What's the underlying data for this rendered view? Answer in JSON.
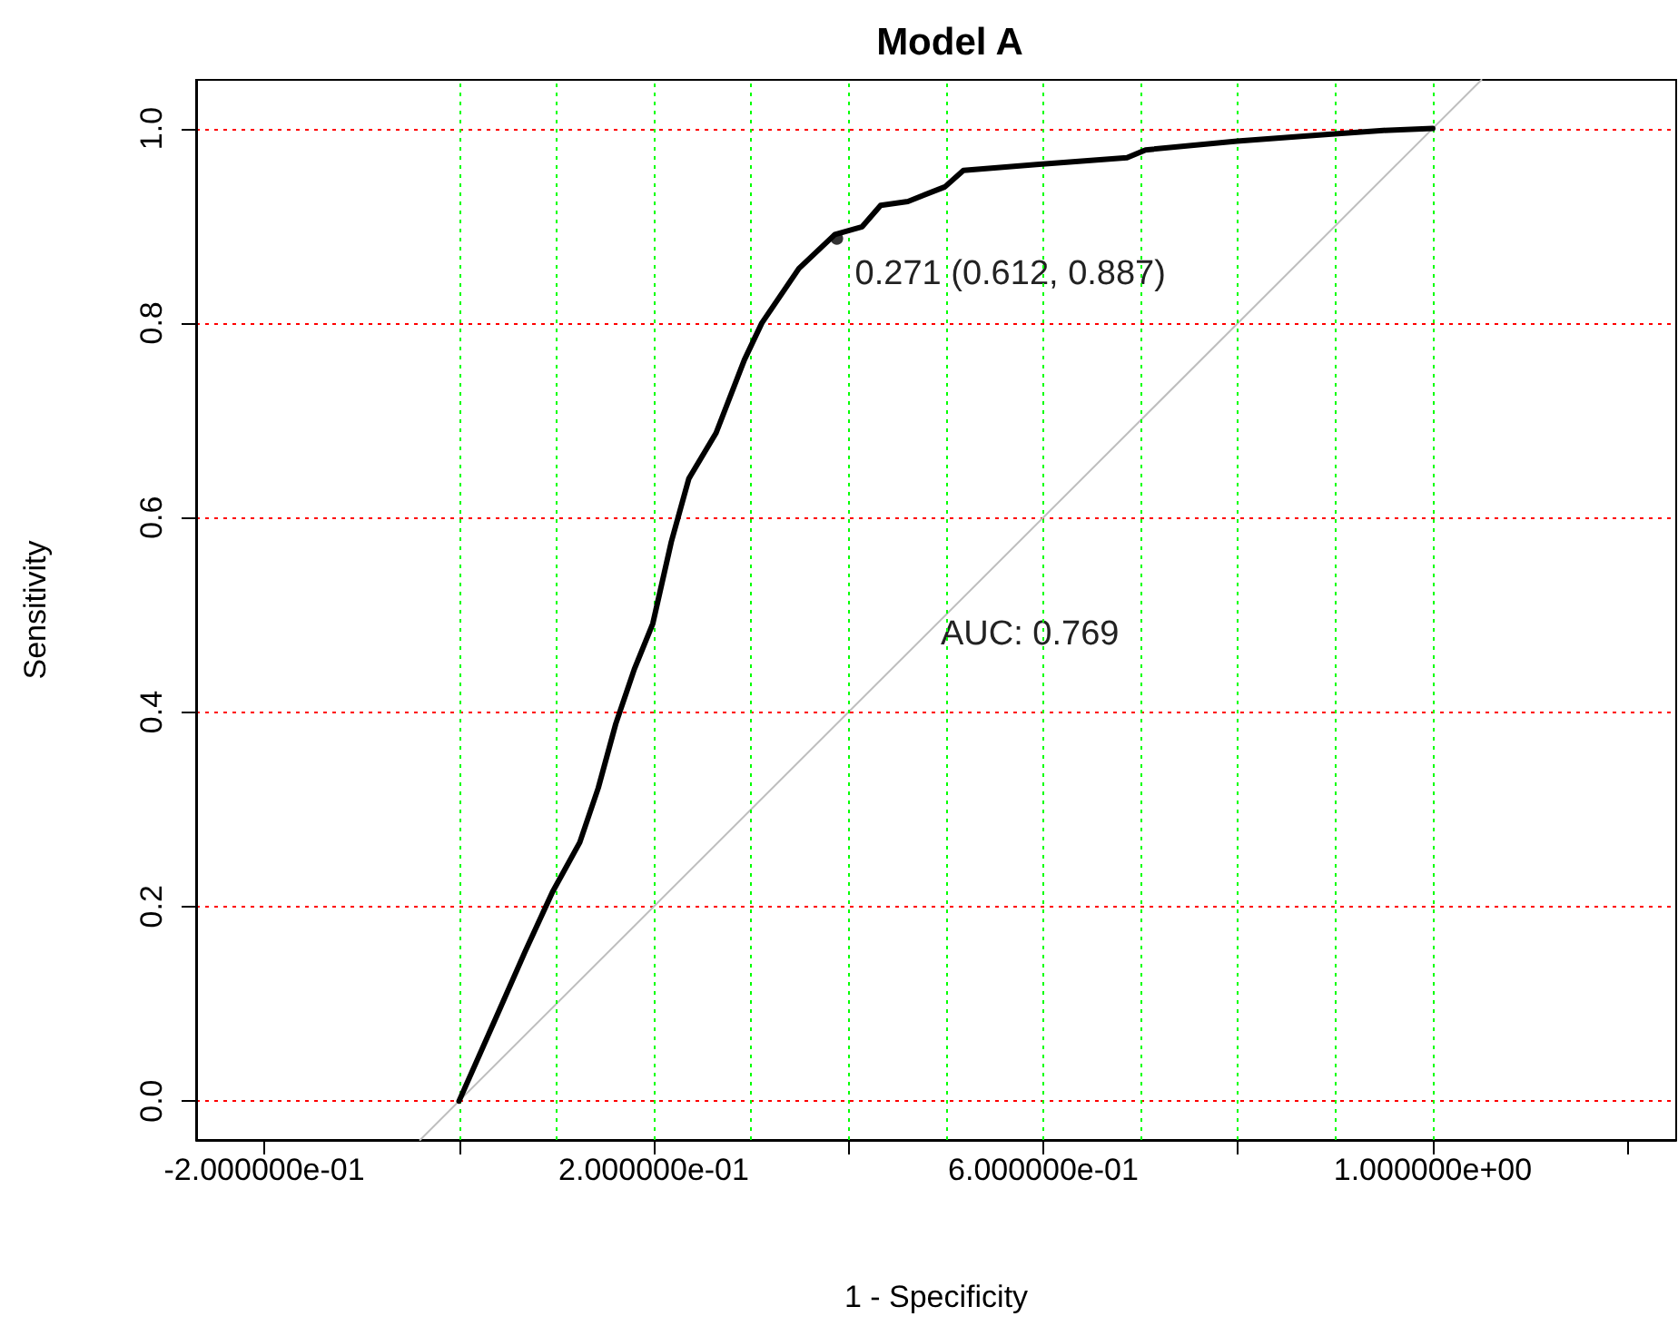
{
  "chart_data": {
    "type": "line",
    "title": "Model A",
    "xlabel": "1 - Specificity",
    "ylabel": "Sensitivity",
    "x": [
      0,
      0.039,
      0.068,
      0.096,
      0.124,
      0.143,
      0.161,
      0.18,
      0.199,
      0.218,
      0.236,
      0.264,
      0.293,
      0.311,
      0.33,
      0.349,
      0.386,
      0.414,
      0.433,
      0.461,
      0.499,
      0.518,
      0.593,
      0.686,
      0.705,
      0.799,
      0.893,
      0.949,
      1
    ],
    "series": [
      {
        "color": "#000000",
        "marker": "none",
        "values": [
          0,
          0.088,
          0.154,
          0.215,
          0.266,
          0.322,
          0.388,
          0.444,
          0.491,
          0.575,
          0.64,
          0.687,
          0.762,
          0.8,
          0.828,
          0.856,
          0.891,
          0.899,
          0.921,
          0.925,
          0.94,
          0.957,
          0.963,
          0.97,
          0.978,
          0.987,
          0.994,
          0.998,
          1
        ]
      },
      {
        "type": "line",
        "color": "#bebebe",
        "marker": "none",
        "x": [
          -0.04,
          1.05
        ],
        "values": [
          -0.04,
          1.05
        ]
      },
      {
        "type": "scatter",
        "color": "#000000",
        "marker": "circle",
        "x": [
          0.388
        ],
        "values": [
          0.887
        ]
      }
    ],
    "annotations": [
      {
        "text": "0.271 (0.612, 0.887)",
        "x": 0.388,
        "y": 0.887
      },
      "AUC: 0.769"
    ],
    "xlim": [
      -0.27,
      1.25
    ],
    "ylim": [
      -0.04,
      1.05
    ],
    "xticks": [
      {
        "value": -0.2,
        "label": "-2.000000e-01"
      },
      {
        "value": 0,
        "label": null
      },
      {
        "value": 0.2,
        "label": "2.000000e-01"
      },
      {
        "value": 0.4,
        "label": null
      },
      {
        "value": 0.6,
        "label": "6.000000e-01"
      },
      {
        "value": 0.8,
        "label": null
      },
      {
        "value": 1,
        "label": "1.000000e+00"
      },
      {
        "value": 1.2,
        "label": null
      }
    ],
    "yticks": [
      {
        "value": 0,
        "label": "0.0"
      },
      0.2,
      0.4,
      0.6,
      0.8,
      {
        "value": 1,
        "label": "1.0"
      }
    ],
    "grid": "y",
    "ref_lines": [
      {
        "axis": "x",
        "value": 0,
        "color": "#00ff00",
        "line_style": "dotted"
      },
      {
        "axis": "x",
        "value": 0.1,
        "color": "#00ff00",
        "line_style": "dotted"
      },
      {
        "axis": "x",
        "value": 0.2,
        "color": "#00ff00",
        "line_style": "dotted"
      },
      {
        "axis": "x",
        "value": 0.3,
        "color": "#00ff00",
        "line_style": "dotted"
      },
      {
        "axis": "x",
        "value": 0.4,
        "color": "#00ff00",
        "line_style": "dotted"
      },
      {
        "axis": "x",
        "value": 0.5,
        "color": "#00ff00",
        "line_style": "dotted"
      },
      {
        "axis": "x",
        "value": 0.6,
        "color": "#00ff00",
        "line_style": "dotted"
      },
      {
        "axis": "x",
        "value": 0.7,
        "color": "#00ff00",
        "line_style": "dotted"
      },
      {
        "axis": "x",
        "value": 0.8,
        "color": "#00ff00",
        "line_style": "dotted"
      },
      {
        "axis": "x",
        "value": 0.9,
        "color": "#00ff00",
        "line_style": "dotted"
      },
      {
        "axis": "x",
        "value": 1,
        "color": "#00ff00",
        "line_style": "dotted"
      }
    ],
    "line_style": "solid"
  }
}
